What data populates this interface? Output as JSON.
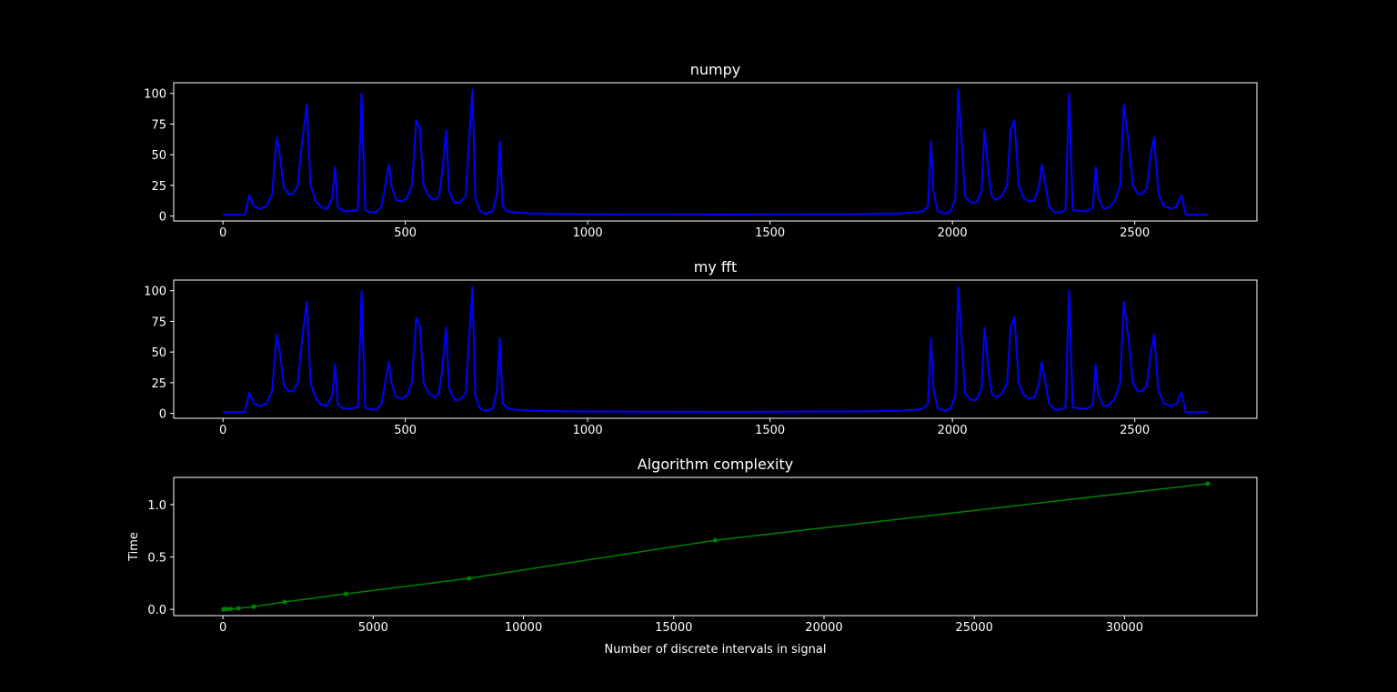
{
  "chart_data": [
    {
      "type": "line",
      "title": "numpy",
      "x": [
        0,
        60,
        72,
        85,
        100,
        120,
        135,
        147,
        155,
        167,
        180,
        192,
        205,
        217,
        230,
        240,
        255,
        270,
        285,
        300,
        307,
        315,
        330,
        350,
        370,
        380,
        390,
        405,
        420,
        435,
        455,
        462,
        475,
        490,
        505,
        518,
        530,
        540,
        550,
        565,
        580,
        592,
        600,
        612,
        620,
        635,
        650,
        665,
        684,
        692,
        705,
        720,
        740,
        752,
        759,
        767,
        780,
        800,
        850,
        1000,
        1350,
        1700,
        1850,
        1900,
        1920,
        1933,
        1941,
        1948,
        1960,
        1980,
        1995,
        2008,
        2016,
        2035,
        2050,
        2065,
        2080,
        2088,
        2100,
        2108,
        2120,
        2135,
        2150,
        2160,
        2170,
        2182,
        2195,
        2210,
        2225,
        2238,
        2245,
        2265,
        2280,
        2295,
        2310,
        2320,
        2330,
        2350,
        2370,
        2385,
        2393,
        2400,
        2415,
        2430,
        2445,
        2460,
        2470,
        2483,
        2495,
        2508,
        2520,
        2533,
        2545,
        2553,
        2565,
        2580,
        2600,
        2615,
        2628,
        2640,
        2700
      ],
      "series": [
        {
          "color": "#0000ff",
          "values": [
            1,
            1,
            17,
            8,
            6,
            8,
            18,
            64,
            52,
            23,
            18,
            18,
            25,
            60,
            91,
            25,
            12,
            7,
            6,
            15,
            40,
            7,
            4,
            4,
            5,
            100,
            5,
            3,
            3,
            8,
            42,
            25,
            13,
            12,
            15,
            25,
            78,
            71,
            25,
            16,
            13,
            16,
            33,
            70,
            20,
            11,
            11,
            16,
            103,
            14,
            4,
            2,
            4,
            20,
            61,
            8,
            4,
            3,
            2,
            1.5,
            1.3,
            1.5,
            2,
            3,
            4,
            8,
            61,
            20,
            4,
            2,
            4,
            14,
            103,
            16,
            11,
            11,
            20,
            70,
            33,
            16,
            13,
            16,
            25,
            71,
            78,
            25,
            15,
            12,
            13,
            25,
            42,
            8,
            3,
            3,
            5,
            100,
            5,
            4,
            4,
            7,
            40,
            15,
            6,
            7,
            12,
            25,
            91,
            60,
            25,
            18,
            18,
            23,
            52,
            64,
            18,
            8,
            6,
            8,
            17,
            1,
            1
          ]
        }
      ],
      "xlim": [
        -135,
        2835
      ],
      "ylim": [
        -4,
        108.7
      ],
      "xticks": [
        0,
        500,
        1000,
        1500,
        2000,
        2500
      ],
      "yticks": [
        0,
        25,
        50,
        75,
        100
      ]
    },
    {
      "type": "line",
      "title": "my fft",
      "x": [
        0,
        60,
        72,
        85,
        100,
        120,
        135,
        147,
        155,
        167,
        180,
        192,
        205,
        217,
        230,
        240,
        255,
        270,
        285,
        300,
        307,
        315,
        330,
        350,
        370,
        380,
        390,
        405,
        420,
        435,
        455,
        462,
        475,
        490,
        505,
        518,
        530,
        540,
        550,
        565,
        580,
        592,
        600,
        612,
        620,
        635,
        650,
        665,
        684,
        692,
        705,
        720,
        740,
        752,
        759,
        767,
        780,
        800,
        850,
        1000,
        1350,
        1700,
        1850,
        1900,
        1920,
        1933,
        1941,
        1948,
        1960,
        1980,
        1995,
        2008,
        2016,
        2035,
        2050,
        2065,
        2080,
        2088,
        2100,
        2108,
        2120,
        2135,
        2150,
        2160,
        2170,
        2182,
        2195,
        2210,
        2225,
        2238,
        2245,
        2265,
        2280,
        2295,
        2310,
        2320,
        2330,
        2350,
        2370,
        2385,
        2393,
        2400,
        2415,
        2430,
        2445,
        2460,
        2470,
        2483,
        2495,
        2508,
        2520,
        2533,
        2545,
        2553,
        2565,
        2580,
        2600,
        2615,
        2628,
        2640,
        2700
      ],
      "series": [
        {
          "color": "#0000ff",
          "values": [
            1,
            1,
            17,
            8,
            6,
            8,
            18,
            64,
            52,
            23,
            18,
            18,
            25,
            60,
            91,
            25,
            12,
            7,
            6,
            15,
            40,
            7,
            4,
            4,
            5,
            100,
            5,
            3,
            3,
            8,
            42,
            25,
            13,
            12,
            15,
            25,
            78,
            71,
            25,
            16,
            13,
            16,
            33,
            70,
            20,
            11,
            11,
            16,
            103,
            14,
            4,
            2,
            4,
            20,
            61,
            8,
            4,
            3,
            2,
            1.5,
            1.3,
            1.5,
            2,
            3,
            4,
            8,
            61,
            20,
            4,
            2,
            4,
            14,
            103,
            16,
            11,
            11,
            20,
            70,
            33,
            16,
            13,
            16,
            25,
            71,
            78,
            25,
            15,
            12,
            13,
            25,
            42,
            8,
            3,
            3,
            5,
            100,
            5,
            4,
            4,
            7,
            40,
            15,
            6,
            7,
            12,
            25,
            91,
            60,
            25,
            18,
            18,
            23,
            52,
            64,
            18,
            8,
            6,
            8,
            17,
            1,
            1
          ]
        }
      ],
      "xlim": [
        -135,
        2835
      ],
      "ylim": [
        -4,
        108.7
      ],
      "xticks": [
        0,
        500,
        1000,
        1500,
        2000,
        2500
      ],
      "yticks": [
        0,
        25,
        50,
        75,
        100
      ]
    },
    {
      "type": "line",
      "title": "Algorithm complexity",
      "x_label": "Number of discrete intervals in signal",
      "y_label": "Time",
      "x": [
        16,
        32,
        64,
        128,
        256,
        512,
        1024,
        2048,
        4096,
        8192,
        16384,
        32768
      ],
      "series": [
        {
          "color": "#008000",
          "marker": "o",
          "values": [
            0,
            0,
            0.001,
            0.002,
            0.004,
            0.009,
            0.026,
            0.07,
            0.148,
            0.296,
            0.66,
            1.2
          ]
        }
      ],
      "xlim": [
        -1638,
        34406
      ],
      "ylim": [
        -0.06,
        1.26
      ],
      "xticks": [
        0,
        5000,
        10000,
        15000,
        20000,
        25000,
        30000
      ],
      "yticks": [
        {
          "value": 0,
          "label": "0.0"
        },
        0.5,
        {
          "value": 1,
          "label": "1.0"
        }
      ]
    }
  ]
}
